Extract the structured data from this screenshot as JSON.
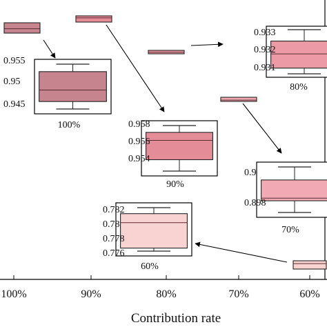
{
  "chart_data": {
    "type": "box",
    "xlabel": "Contribution rate",
    "categories": [
      "100%",
      "90%",
      "80%",
      "70%",
      "60%"
    ],
    "grid": false,
    "colors": {
      "100%": "#c5848e",
      "90%": "#e58c99",
      "80%": "#ec9aa6",
      "70%": "#f1aab4",
      "60%": "#f9d2d2"
    },
    "main_boxes": [
      {
        "category": "100%",
        "min": 0.944,
        "q1": 0.9455,
        "median": 0.9478,
        "q3": 0.9515,
        "max": 0.953
      },
      {
        "category": "90%",
        "min": 0.9538,
        "q1": 0.9548,
        "median": 0.9565,
        "q3": 0.9572,
        "max": 0.9578
      },
      {
        "category": "80%",
        "min": 0.9304,
        "q1": 0.9308,
        "median": 0.9318,
        "q3": 0.9327,
        "max": 0.9335
      },
      {
        "category": "70%",
        "min": 0.8965,
        "q1": 0.8974,
        "median": 0.8976,
        "q3": 0.899,
        "max": 0.9
      },
      {
        "category": "60%",
        "min": 0.7762,
        "q1": 0.7766,
        "median": 0.78,
        "q3": 0.7812,
        "max": 0.782
      }
    ],
    "insets": [
      {
        "category": "100%",
        "label": "100%",
        "yticks": [
          "0.955",
          "0.95",
          "0.945"
        ],
        "ytick_values": [
          0.955,
          0.95,
          0.945
        ],
        "ylim": [
          0.943,
          0.955
        ],
        "box": {
          "min": 0.944,
          "q1": 0.9455,
          "median": 0.9478,
          "q3": 0.9515,
          "max": 0.953
        }
      },
      {
        "category": "90%",
        "label": "90%",
        "yticks": [
          "0.958",
          "0.956",
          "0.954"
        ],
        "ytick_values": [
          0.958,
          0.956,
          0.954
        ],
        "ylim": [
          0.953,
          0.9585
        ],
        "box": {
          "min": 0.9538,
          "q1": 0.9548,
          "median": 0.9565,
          "q3": 0.9572,
          "max": 0.9578
        }
      },
      {
        "category": "80%",
        "label": "80%",
        "yticks": [
          "0.933",
          "0.932",
          "0.931"
        ],
        "ytick_values": [
          0.933,
          0.932,
          0.931
        ],
        "ylim": [
          0.9302,
          0.9337
        ],
        "box": {
          "min": 0.9304,
          "q1": 0.9308,
          "median": 0.9318,
          "q3": 0.9327,
          "max": 0.9335
        }
      },
      {
        "category": "70%",
        "label": "70%",
        "yticks": [
          "0.9",
          "0.898"
        ],
        "ytick_values": [
          0.9,
          0.898
        ],
        "ylim": [
          0.8963,
          0.9003
        ],
        "box": {
          "min": 0.8965,
          "q1": 0.8974,
          "median": 0.8976,
          "q3": 0.899,
          "max": 0.9
        }
      },
      {
        "category": "60%",
        "label": "60%",
        "yticks": [
          "0.782",
          "0.78",
          "0.778",
          "0.776"
        ],
        "ytick_values": [
          0.782,
          0.78,
          0.778,
          0.776
        ],
        "ylim": [
          0.7758,
          0.7824
        ],
        "box": {
          "min": 0.7762,
          "q1": 0.7766,
          "median": 0.78,
          "q3": 0.7812,
          "max": 0.782
        }
      }
    ]
  }
}
